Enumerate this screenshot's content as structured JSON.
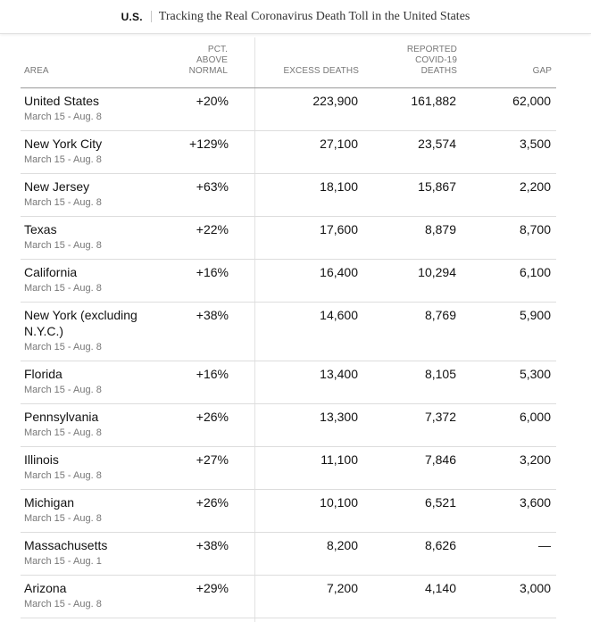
{
  "header": {
    "brand": "U.S.",
    "headline": "Tracking the Real Coronavirus Death Toll in the United States"
  },
  "table": {
    "columns": {
      "area": "AREA",
      "pct_line1": "PCT.",
      "pct_line2": "ABOVE",
      "pct_line3": "NORMAL",
      "excess": "EXCESS DEATHS",
      "reported_line1": "REPORTED",
      "reported_line2": "COVID-19",
      "reported_line3": "DEATHS",
      "gap": "GAP"
    },
    "rows": [
      {
        "area": "United States",
        "date": "March 15 - Aug. 8",
        "pct": "+20%",
        "excess": "223,900",
        "reported": "161,882",
        "gap": "62,000"
      },
      {
        "area": "New York City",
        "date": "March 15 - Aug. 8",
        "pct": "+129%",
        "excess": "27,100",
        "reported": "23,574",
        "gap": "3,500"
      },
      {
        "area": "New Jersey",
        "date": "March 15 - Aug. 8",
        "pct": "+63%",
        "excess": "18,100",
        "reported": "15,867",
        "gap": "2,200"
      },
      {
        "area": "Texas",
        "date": "March 15 - Aug. 8",
        "pct": "+22%",
        "excess": "17,600",
        "reported": "8,879",
        "gap": "8,700"
      },
      {
        "area": "California",
        "date": "March 15 - Aug. 8",
        "pct": "+16%",
        "excess": "16,400",
        "reported": "10,294",
        "gap": "6,100"
      },
      {
        "area": "New York (excluding N.Y.C.)",
        "date": "March 15 - Aug. 8",
        "pct": "+38%",
        "excess": "14,600",
        "reported": "8,769",
        "gap": "5,900"
      },
      {
        "area": "Florida",
        "date": "March 15 - Aug. 8",
        "pct": "+16%",
        "excess": "13,400",
        "reported": "8,105",
        "gap": "5,300"
      },
      {
        "area": "Pennsylvania",
        "date": "March 15 - Aug. 8",
        "pct": "+26%",
        "excess": "13,300",
        "reported": "7,372",
        "gap": "6,000"
      },
      {
        "area": "Illinois",
        "date": "March 15 - Aug. 8",
        "pct": "+27%",
        "excess": "11,100",
        "reported": "7,846",
        "gap": "3,200"
      },
      {
        "area": "Michigan",
        "date": "March 15 - Aug. 8",
        "pct": "+26%",
        "excess": "10,100",
        "reported": "6,521",
        "gap": "3,600"
      },
      {
        "area": "Massachusetts",
        "date": "March 15 - Aug. 1",
        "pct": "+38%",
        "excess": "8,200",
        "reported": "8,626",
        "gap": "—"
      },
      {
        "area": "Arizona",
        "date": "March 15 - Aug. 8",
        "pct": "+29%",
        "excess": "7,200",
        "reported": "4,140",
        "gap": "3,000"
      }
    ]
  }
}
